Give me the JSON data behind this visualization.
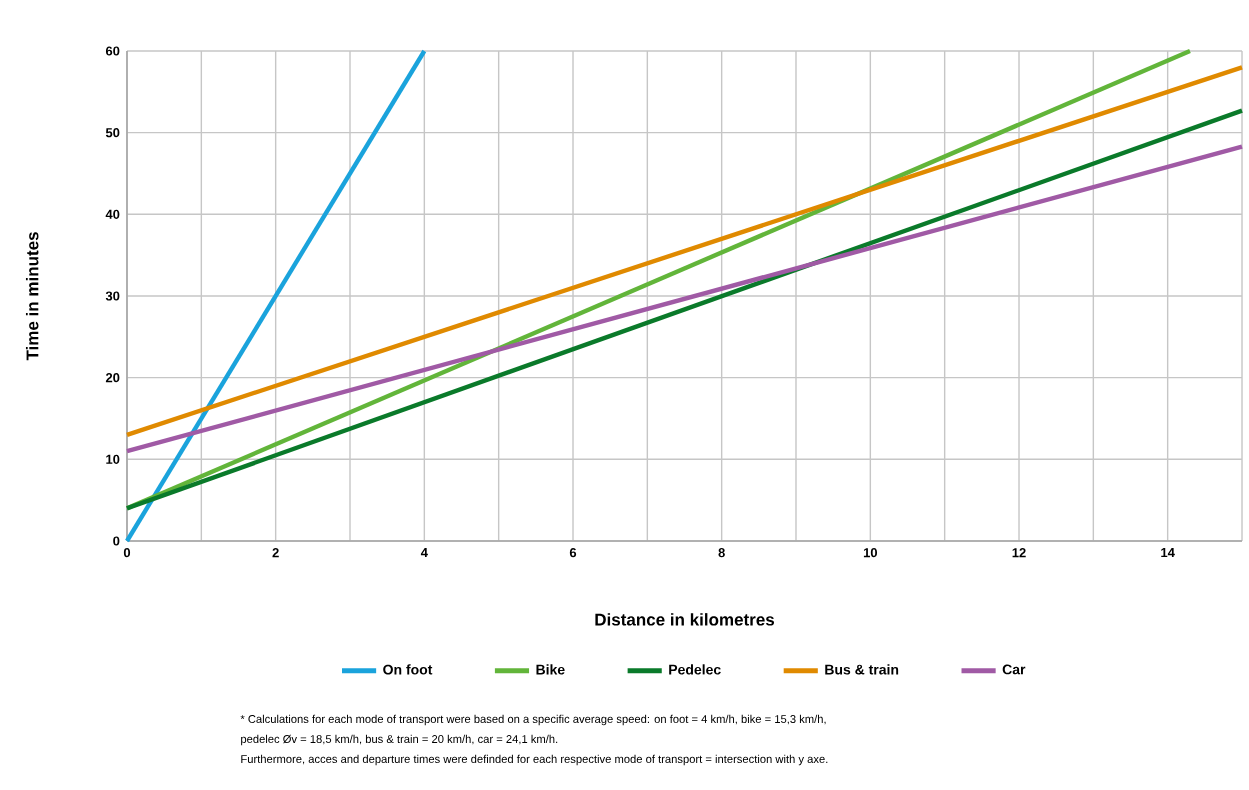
{
  "chart_data": {
    "type": "line",
    "xlabel": "Distance in kilometres",
    "ylabel": "Time in minutes",
    "xlim": [
      0,
      15
    ],
    "ylim": [
      0,
      60
    ],
    "xticks": [
      0,
      {
        "value": 1,
        "label": null
      },
      2,
      {
        "value": 3,
        "label": null
      },
      4,
      {
        "value": 5,
        "label": null
      },
      6,
      {
        "value": 7,
        "label": null
      },
      8,
      {
        "value": 9,
        "label": null
      },
      10,
      {
        "value": 11,
        "label": null
      },
      12,
      {
        "value": 13,
        "label": null
      },
      14,
      {
        "value": 15,
        "label": null
      }
    ],
    "yticks": [
      0,
      10,
      20,
      30,
      40,
      50,
      60
    ],
    "grid": true,
    "legend": "bottom",
    "series": [
      {
        "name": "On foot",
        "color": "#1aa3dc",
        "x": [
          0,
          4
        ],
        "values": [
          0,
          60
        ]
      },
      {
        "name": "Bike",
        "color": "#62b53a",
        "x": [
          0,
          14.3
        ],
        "values": [
          4,
          60
        ]
      },
      {
        "name": "Pedelec",
        "color": "#0a7a2a",
        "x": [
          0,
          15
        ],
        "values": [
          4,
          52.7
        ]
      },
      {
        "name": "Bus & train",
        "color": "#e08a00",
        "x": [
          0,
          15
        ],
        "values": [
          13,
          58
        ]
      },
      {
        "name": "Car",
        "color": "#a05aa5",
        "x": [
          0,
          15
        ],
        "values": [
          11,
          48.3
        ]
      }
    ],
    "annotations": [
      "* Calculations for each mode of transport were based on a specific average speed: on foot = 4 km/h, bike = 15,3 km/h,",
      "pedelec Øv = 18,5 km/h, bus & train = 20 km/h, car = 24,1 km/h.",
      "Furthermore, acces and departure times were definded for each respective mode of transport = intersection with y axe."
    ]
  }
}
